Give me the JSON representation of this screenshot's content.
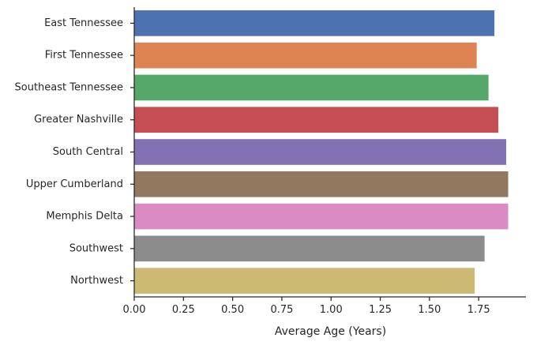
{
  "chart_data": {
    "type": "bar",
    "orientation": "horizontal",
    "categories": [
      "East Tennessee",
      "First Tennessee",
      "Southeast Tennessee",
      "Greater Nashville",
      "South Central",
      "Upper Cumberland",
      "Memphis Delta",
      "Southwest",
      "Northwest"
    ],
    "values": [
      1.83,
      1.74,
      1.8,
      1.85,
      1.89,
      1.9,
      1.9,
      1.78,
      1.73
    ],
    "colors": [
      "#4c72b0",
      "#dd8452",
      "#55a868",
      "#c44e52",
      "#8172b3",
      "#937860",
      "#da8bc3",
      "#8c8c8c",
      "#ccb974"
    ],
    "title": "",
    "xlabel": "Average Age (Years)",
    "ylabel": "",
    "xlim": [
      0,
      1.99
    ],
    "xticks": [
      0.0,
      0.25,
      0.5,
      0.75,
      1.0,
      1.25,
      1.5,
      1.75
    ],
    "xtick_labels": [
      "0.00",
      "0.25",
      "0.50",
      "0.75",
      "1.00",
      "1.25",
      "1.50",
      "1.75"
    ],
    "grid": false,
    "legend": "none"
  }
}
